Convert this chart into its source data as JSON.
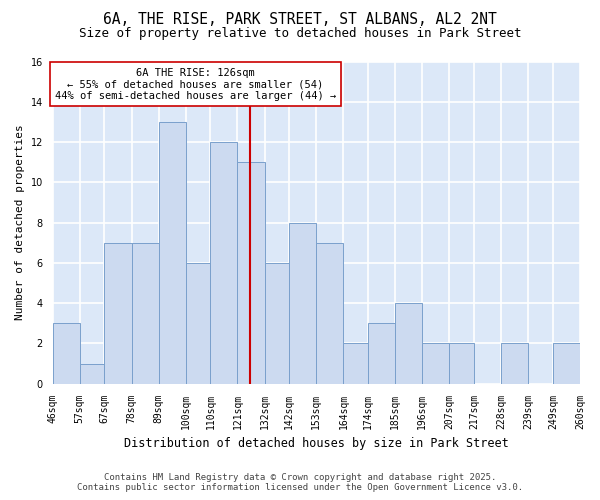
{
  "title_line1": "6A, THE RISE, PARK STREET, ST ALBANS, AL2 2NT",
  "title_line2": "Size of property relative to detached houses in Park Street",
  "xlabel": "Distribution of detached houses by size in Park Street",
  "ylabel": "Number of detached properties",
  "bar_edges": [
    46,
    57,
    67,
    78,
    89,
    100,
    110,
    121,
    132,
    142,
    153,
    164,
    174,
    185,
    196,
    207,
    217,
    228,
    239,
    249,
    260
  ],
  "bar_heights": [
    3,
    1,
    7,
    7,
    13,
    6,
    12,
    11,
    6,
    8,
    7,
    2,
    3,
    4,
    2,
    2,
    0,
    2,
    0,
    2
  ],
  "bar_facecolor": "#ccdaf0",
  "bar_edgecolor": "#7aa0cc",
  "property_value": 126,
  "vline_color": "#cc0000",
  "annotation_text_line1": "6A THE RISE: 126sqm",
  "annotation_text_line2": "← 55% of detached houses are smaller (54)",
  "annotation_text_line3": "44% of semi-detached houses are larger (44) →",
  "annotation_box_facecolor": "#ffffff",
  "annotation_box_edgecolor": "#cc0000",
  "ylim": [
    0,
    16
  ],
  "yticks": [
    0,
    2,
    4,
    6,
    8,
    10,
    12,
    14,
    16
  ],
  "figure_facecolor": "#ffffff",
  "plot_facecolor": "#dce8f8",
  "grid_color": "#ffffff",
  "footer_line1": "Contains HM Land Registry data © Crown copyright and database right 2025.",
  "footer_line2": "Contains public sector information licensed under the Open Government Licence v3.0.",
  "title_fontsize": 10.5,
  "subtitle_fontsize": 9,
  "ylabel_fontsize": 8,
  "xlabel_fontsize": 8.5,
  "tick_fontsize": 7,
  "annotation_fontsize": 7.5,
  "footer_fontsize": 6.5
}
